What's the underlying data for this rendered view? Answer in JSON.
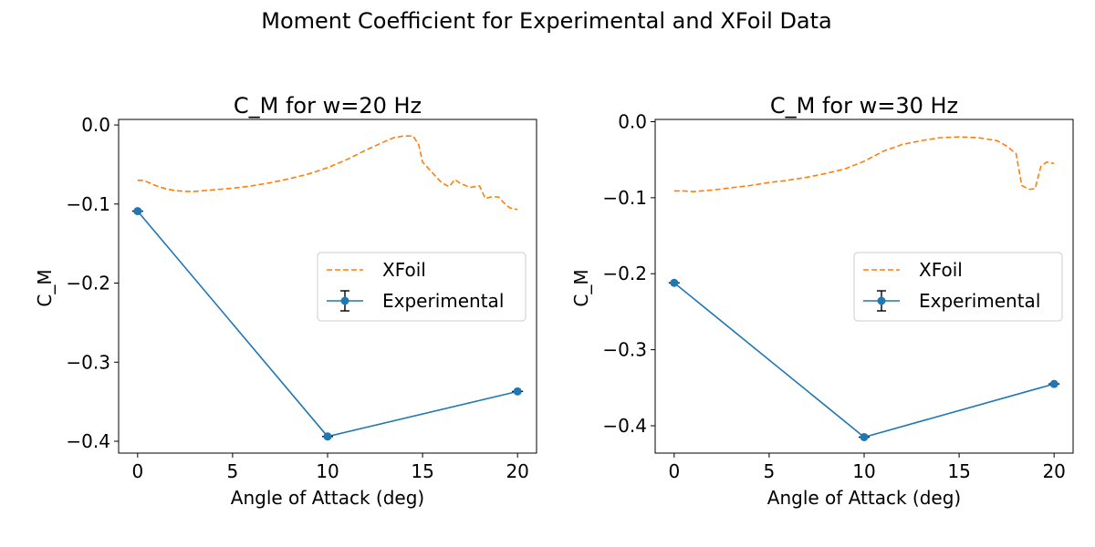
{
  "figure": {
    "suptitle": "Moment Coefficient for Experimental and XFoil Data"
  },
  "chart_data": [
    {
      "type": "line",
      "title": "C_M for w=20 Hz",
      "xlabel": "Angle of Attack (deg)",
      "ylabel": "C_M",
      "xlim": [
        -1,
        21
      ],
      "ylim": [
        -0.415,
        0.007
      ],
      "xticks": [
        0,
        5,
        10,
        15,
        20
      ],
      "yticks": [
        0.0,
        -0.1,
        -0.2,
        -0.3,
        -0.4
      ],
      "xtick_labels": [
        "0",
        "5",
        "10",
        "15",
        "20"
      ],
      "ytick_labels": [
        "0.0",
        "−0.1",
        "−0.2",
        "−0.3",
        "−0.4"
      ],
      "legend": {
        "position": "center-right",
        "entries": [
          "XFoil",
          "Experimental"
        ]
      },
      "grid": false,
      "series": [
        {
          "name": "XFoil",
          "style": "dashed",
          "color": "#ff7f0e",
          "x": [
            0,
            0.3,
            0.6,
            1,
            1.5,
            2,
            2.5,
            3,
            3.5,
            4,
            5,
            6,
            7,
            8,
            9,
            10,
            11,
            12,
            13,
            13.5,
            14,
            14.5,
            14.8,
            15,
            15.5,
            16,
            16.4,
            16.7,
            17,
            17.5,
            18,
            18.3,
            18.6,
            19,
            19.3,
            19.6,
            20
          ],
          "y": [
            -0.07,
            -0.07,
            -0.073,
            -0.077,
            -0.081,
            -0.083,
            -0.084,
            -0.084,
            -0.083,
            -0.082,
            -0.08,
            -0.077,
            -0.073,
            -0.068,
            -0.062,
            -0.054,
            -0.044,
            -0.032,
            -0.021,
            -0.016,
            -0.014,
            -0.014,
            -0.025,
            -0.047,
            -0.06,
            -0.073,
            -0.078,
            -0.069,
            -0.074,
            -0.079,
            -0.077,
            -0.093,
            -0.091,
            -0.091,
            -0.099,
            -0.105,
            -0.107
          ]
        },
        {
          "name": "Experimental",
          "style": "solid-marker",
          "color": "#1f77b4",
          "x": [
            0,
            10,
            20
          ],
          "y": [
            -0.109,
            -0.394,
            -0.337
          ],
          "yerr": [
            0.002,
            0.002,
            0.002
          ]
        }
      ]
    },
    {
      "type": "line",
      "title": "C_M for w=30 Hz",
      "xlabel": "Angle of Attack (deg)",
      "ylabel": "C_M",
      "xlim": [
        -1,
        21
      ],
      "ylim": [
        -0.436,
        0.003
      ],
      "xticks": [
        0,
        5,
        10,
        15,
        20
      ],
      "yticks": [
        0.0,
        -0.1,
        -0.2,
        -0.3,
        -0.4
      ],
      "xtick_labels": [
        "0",
        "5",
        "10",
        "15",
        "20"
      ],
      "ytick_labels": [
        "0.0",
        "−0.1",
        "−0.2",
        "−0.3",
        "−0.4"
      ],
      "legend": {
        "position": "center-right",
        "entries": [
          "XFoil",
          "Experimental"
        ]
      },
      "grid": false,
      "series": [
        {
          "name": "XFoil",
          "style": "dashed",
          "color": "#ff7f0e",
          "x": [
            0,
            0.5,
            1,
            2,
            3,
            4,
            5,
            6,
            7,
            8,
            9,
            10,
            11,
            12,
            13,
            14,
            15,
            16,
            17,
            17.5,
            18,
            18.3,
            18.7,
            19,
            19.3,
            19.6,
            20
          ],
          "y": [
            -0.091,
            -0.091,
            -0.092,
            -0.09,
            -0.087,
            -0.084,
            -0.08,
            -0.077,
            -0.073,
            -0.068,
            -0.062,
            -0.052,
            -0.039,
            -0.03,
            -0.025,
            -0.021,
            -0.02,
            -0.021,
            -0.025,
            -0.032,
            -0.042,
            -0.084,
            -0.089,
            -0.088,
            -0.059,
            -0.053,
            -0.055
          ]
        },
        {
          "name": "Experimental",
          "style": "solid-marker",
          "color": "#1f77b4",
          "x": [
            0,
            10,
            20
          ],
          "y": [
            -0.212,
            -0.415,
            -0.345
          ],
          "yerr": [
            0.002,
            0.002,
            0.002
          ]
        }
      ]
    }
  ]
}
